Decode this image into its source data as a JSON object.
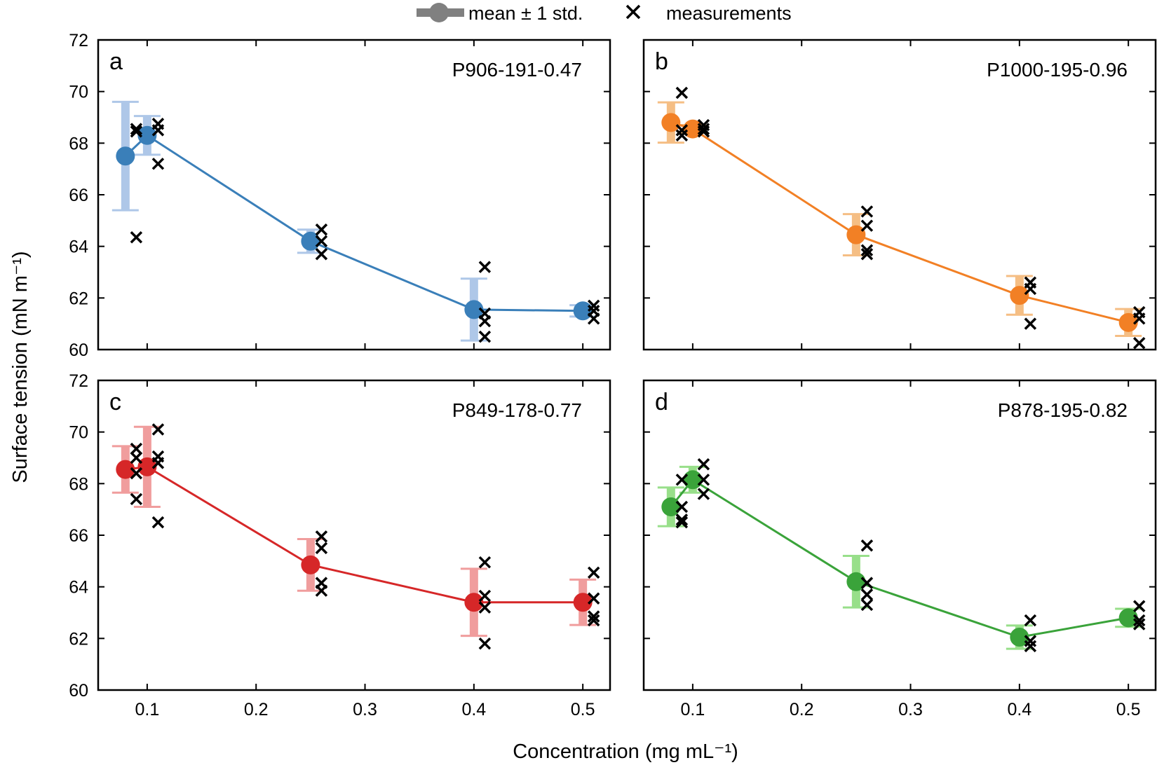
{
  "legend": {
    "mean_label": "mean ± 1 std.",
    "measure_label": "measurements",
    "mean_color": "#808080"
  },
  "ylabel": "Surface tension (mN m⁻¹)",
  "xlabel": "Concentration (mg mL⁻¹)",
  "chart_data": [
    {
      "type": "scatter",
      "panel": "a",
      "title": "P906-191-0.47",
      "color": "#3a7fb9",
      "err_color": "#aec7e8",
      "xlim": [
        0.055,
        0.525
      ],
      "ylim": [
        60,
        72
      ],
      "xticks": [
        0.1,
        0.2,
        0.3,
        0.4,
        0.5
      ],
      "xtick_labels": [
        "0.1",
        "0.2",
        "0.3",
        "0.4",
        "0.5"
      ],
      "yticks": [
        60,
        62,
        64,
        66,
        68,
        70,
        72
      ],
      "ytick_labels": [
        "60",
        "62",
        "64",
        "66",
        "68",
        "70",
        "72"
      ],
      "show_yticklabels": true,
      "show_xticklabels": false,
      "means": [
        {
          "x": 0.08,
          "y": 67.5,
          "std": 2.1
        },
        {
          "x": 0.1,
          "y": 68.3,
          "std": 0.75
        },
        {
          "x": 0.25,
          "y": 64.2,
          "std": 0.45
        },
        {
          "x": 0.4,
          "y": 61.55,
          "std": 1.2
        },
        {
          "x": 0.5,
          "y": 61.5,
          "std": 0.22
        }
      ],
      "measurements": [
        {
          "x": 0.09,
          "y": 68.55
        },
        {
          "x": 0.09,
          "y": 68.45
        },
        {
          "x": 0.09,
          "y": 64.35
        },
        {
          "x": 0.11,
          "y": 68.75
        },
        {
          "x": 0.11,
          "y": 68.5
        },
        {
          "x": 0.11,
          "y": 67.2
        },
        {
          "x": 0.26,
          "y": 64.65
        },
        {
          "x": 0.26,
          "y": 64.2
        },
        {
          "x": 0.26,
          "y": 63.7
        },
        {
          "x": 0.41,
          "y": 63.2
        },
        {
          "x": 0.41,
          "y": 61.4
        },
        {
          "x": 0.41,
          "y": 61.1
        },
        {
          "x": 0.41,
          "y": 60.5
        },
        {
          "x": 0.51,
          "y": 61.7
        },
        {
          "x": 0.51,
          "y": 61.5
        },
        {
          "x": 0.51,
          "y": 61.2
        }
      ]
    },
    {
      "type": "scatter",
      "panel": "b",
      "title": "P1000-195-0.96",
      "color": "#f28025",
      "err_color": "#f5be84",
      "xlim": [
        0.055,
        0.525
      ],
      "ylim": [
        60,
        72
      ],
      "xticks": [
        0.1,
        0.2,
        0.3,
        0.4,
        0.5
      ],
      "xtick_labels": [
        "0.1",
        "0.2",
        "0.3",
        "0.4",
        "0.5"
      ],
      "yticks": [
        60,
        62,
        64,
        66,
        68,
        70,
        72
      ],
      "ytick_labels": [
        "60",
        "62",
        "64",
        "66",
        "68",
        "70",
        "72"
      ],
      "show_yticklabels": false,
      "show_xticklabels": false,
      "means": [
        {
          "x": 0.08,
          "y": 68.8,
          "std": 0.78
        },
        {
          "x": 0.1,
          "y": 68.55,
          "std": 0.15
        },
        {
          "x": 0.25,
          "y": 64.45,
          "std": 0.8
        },
        {
          "x": 0.4,
          "y": 62.1,
          "std": 0.75
        },
        {
          "x": 0.5,
          "y": 61.05,
          "std": 0.52
        }
      ],
      "measurements": [
        {
          "x": 0.09,
          "y": 69.95
        },
        {
          "x": 0.09,
          "y": 68.5
        },
        {
          "x": 0.09,
          "y": 68.3
        },
        {
          "x": 0.11,
          "y": 68.7
        },
        {
          "x": 0.11,
          "y": 68.55
        },
        {
          "x": 0.11,
          "y": 68.45
        },
        {
          "x": 0.26,
          "y": 65.35
        },
        {
          "x": 0.26,
          "y": 64.8
        },
        {
          "x": 0.26,
          "y": 63.85
        },
        {
          "x": 0.26,
          "y": 63.7
        },
        {
          "x": 0.41,
          "y": 62.6
        },
        {
          "x": 0.41,
          "y": 62.35
        },
        {
          "x": 0.41,
          "y": 61.0
        },
        {
          "x": 0.51,
          "y": 61.45
        },
        {
          "x": 0.51,
          "y": 61.2
        },
        {
          "x": 0.51,
          "y": 60.25
        }
      ]
    },
    {
      "type": "scatter",
      "panel": "c",
      "title": "P849-178-0.77",
      "color": "#d62728",
      "err_color": "#f09d9d",
      "xlim": [
        0.055,
        0.525
      ],
      "ylim": [
        60,
        72
      ],
      "xticks": [
        0.1,
        0.2,
        0.3,
        0.4,
        0.5
      ],
      "xtick_labels": [
        "0.1",
        "0.2",
        "0.3",
        "0.4",
        "0.5"
      ],
      "yticks": [
        60,
        62,
        64,
        66,
        68,
        70,
        72
      ],
      "ytick_labels": [
        "60",
        "62",
        "64",
        "66",
        "68",
        "70",
        "72"
      ],
      "show_yticklabels": true,
      "show_xticklabels": true,
      "means": [
        {
          "x": 0.08,
          "y": 68.55,
          "std": 0.9
        },
        {
          "x": 0.1,
          "y": 68.65,
          "std": 1.55
        },
        {
          "x": 0.25,
          "y": 64.85,
          "std": 1.0
        },
        {
          "x": 0.4,
          "y": 63.4,
          "std": 1.3
        },
        {
          "x": 0.5,
          "y": 63.4,
          "std": 0.88
        }
      ],
      "measurements": [
        {
          "x": 0.09,
          "y": 69.35
        },
        {
          "x": 0.09,
          "y": 69.0
        },
        {
          "x": 0.09,
          "y": 68.4
        },
        {
          "x": 0.09,
          "y": 67.4
        },
        {
          "x": 0.11,
          "y": 70.1
        },
        {
          "x": 0.11,
          "y": 69.05
        },
        {
          "x": 0.11,
          "y": 68.8
        },
        {
          "x": 0.11,
          "y": 66.5
        },
        {
          "x": 0.26,
          "y": 65.95
        },
        {
          "x": 0.26,
          "y": 65.5
        },
        {
          "x": 0.26,
          "y": 64.15
        },
        {
          "x": 0.26,
          "y": 63.85
        },
        {
          "x": 0.41,
          "y": 64.95
        },
        {
          "x": 0.41,
          "y": 63.65
        },
        {
          "x": 0.41,
          "y": 63.2
        },
        {
          "x": 0.41,
          "y": 61.8
        },
        {
          "x": 0.51,
          "y": 64.55
        },
        {
          "x": 0.51,
          "y": 63.55
        },
        {
          "x": 0.51,
          "y": 62.85
        },
        {
          "x": 0.51,
          "y": 62.7
        }
      ]
    },
    {
      "type": "scatter",
      "panel": "d",
      "title": "P878-195-0.82",
      "color": "#3aa33a",
      "err_color": "#98df8a",
      "xlim": [
        0.055,
        0.525
      ],
      "ylim": [
        60,
        72
      ],
      "xticks": [
        0.1,
        0.2,
        0.3,
        0.4,
        0.5
      ],
      "xtick_labels": [
        "0.1",
        "0.2",
        "0.3",
        "0.4",
        "0.5"
      ],
      "yticks": [
        60,
        62,
        64,
        66,
        68,
        70,
        72
      ],
      "ytick_labels": [
        "60",
        "62",
        "64",
        "66",
        "68",
        "70",
        "72"
      ],
      "show_yticklabels": false,
      "show_xticklabels": true,
      "means": [
        {
          "x": 0.08,
          "y": 67.1,
          "std": 0.75
        },
        {
          "x": 0.1,
          "y": 68.15,
          "std": 0.5
        },
        {
          "x": 0.25,
          "y": 64.2,
          "std": 1.0
        },
        {
          "x": 0.4,
          "y": 62.05,
          "std": 0.45
        },
        {
          "x": 0.5,
          "y": 62.8,
          "std": 0.35
        }
      ],
      "measurements": [
        {
          "x": 0.09,
          "y": 68.15
        },
        {
          "x": 0.09,
          "y": 67.1
        },
        {
          "x": 0.09,
          "y": 66.6
        },
        {
          "x": 0.09,
          "y": 66.5
        },
        {
          "x": 0.11,
          "y": 68.75
        },
        {
          "x": 0.11,
          "y": 68.15
        },
        {
          "x": 0.11,
          "y": 67.6
        },
        {
          "x": 0.26,
          "y": 65.6
        },
        {
          "x": 0.26,
          "y": 64.15
        },
        {
          "x": 0.26,
          "y": 63.7
        },
        {
          "x": 0.26,
          "y": 63.3
        },
        {
          "x": 0.41,
          "y": 62.7
        },
        {
          "x": 0.41,
          "y": 61.9
        },
        {
          "x": 0.41,
          "y": 61.7
        },
        {
          "x": 0.51,
          "y": 63.25
        },
        {
          "x": 0.51,
          "y": 62.7
        },
        {
          "x": 0.51,
          "y": 62.55
        }
      ]
    }
  ]
}
